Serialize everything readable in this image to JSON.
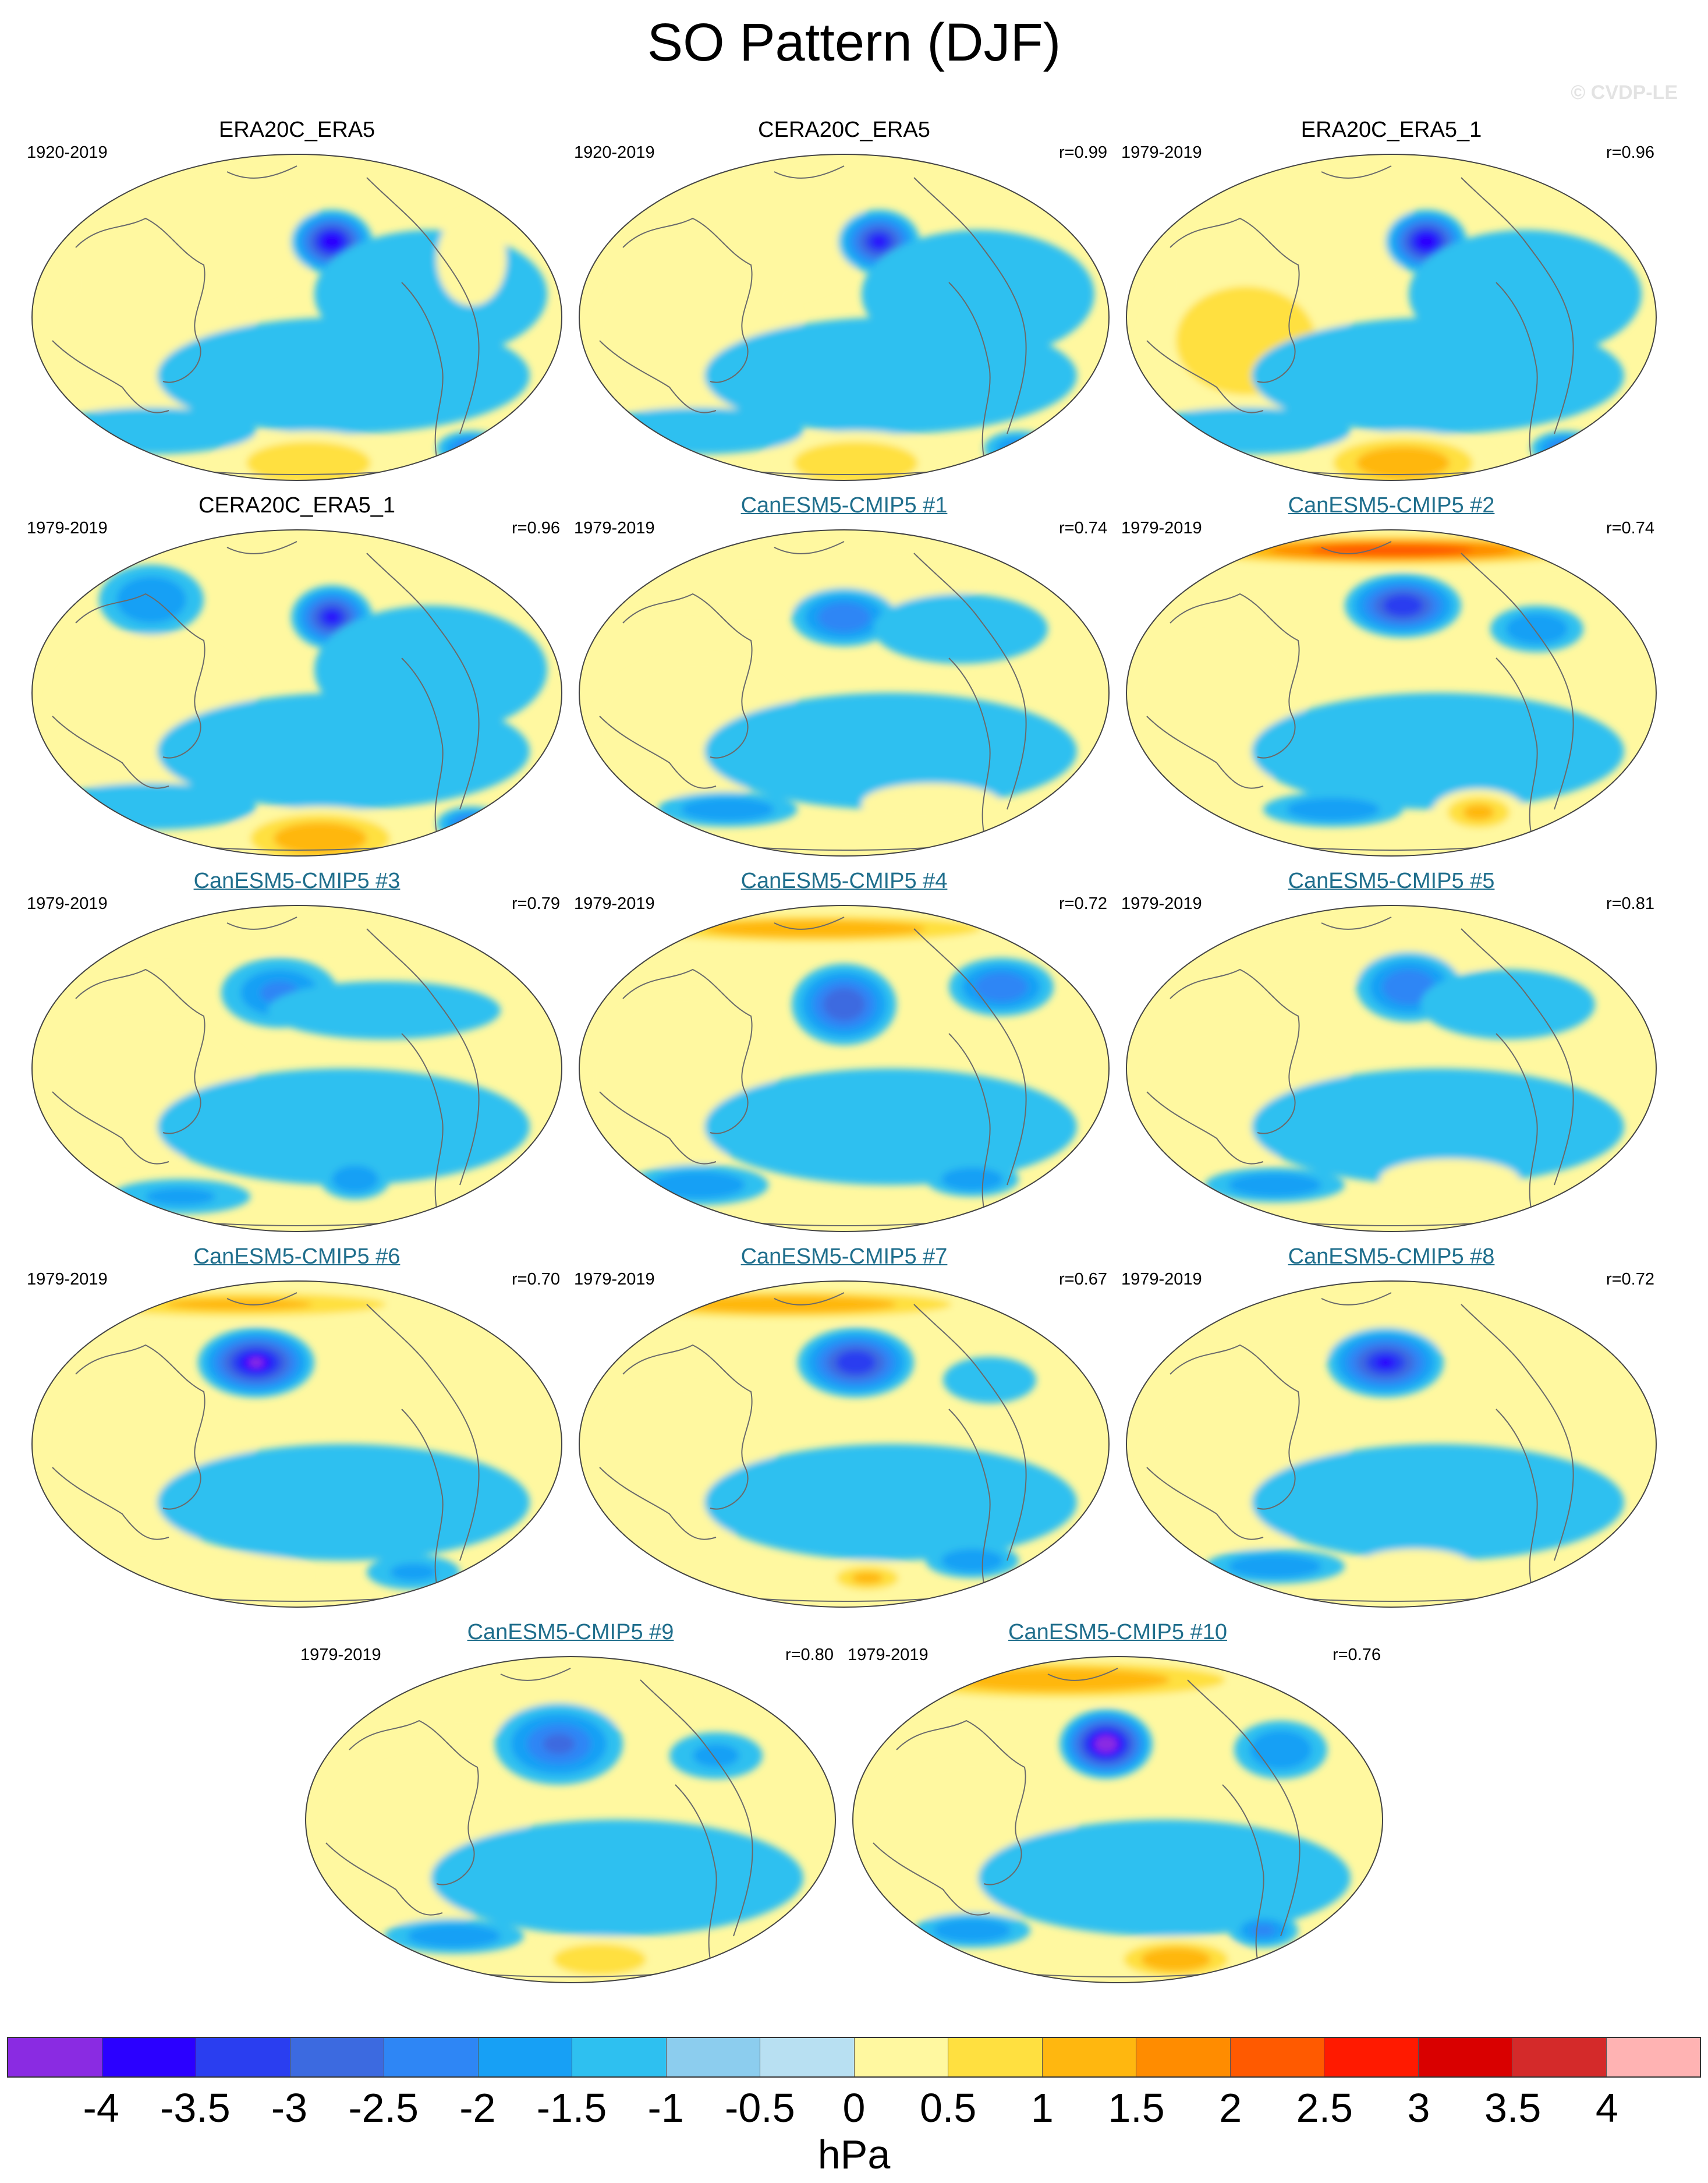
{
  "figure": {
    "title": "SO Pattern (DJF)",
    "watermark": "© CVDP-LE"
  },
  "panels": [
    {
      "title": "ERA20C_ERA5",
      "period": "1920-2019",
      "r": "",
      "title_color": "#000000"
    },
    {
      "title": "CERA20C_ERA5",
      "period": "1920-2019",
      "r": "r=0.99",
      "title_color": "#000000"
    },
    {
      "title": "ERA20C_ERA5_1",
      "period": "1979-2019",
      "r": "r=0.96",
      "title_color": "#000000"
    },
    {
      "title": "CERA20C_ERA5_1",
      "period": "1979-2019",
      "r": "r=0.96",
      "title_color": "#000000"
    },
    {
      "title": "CanESM5-CMIP5 #1",
      "period": "1979-2019",
      "r": "r=0.74",
      "title_color": "#1f6e8c"
    },
    {
      "title": "CanESM5-CMIP5 #2",
      "period": "1979-2019",
      "r": "r=0.74",
      "title_color": "#1f6e8c"
    },
    {
      "title": "CanESM5-CMIP5 #3",
      "period": "1979-2019",
      "r": "r=0.79",
      "title_color": "#1f6e8c"
    },
    {
      "title": "CanESM5-CMIP5 #4",
      "period": "1979-2019",
      "r": "r=0.72",
      "title_color": "#1f6e8c"
    },
    {
      "title": "CanESM5-CMIP5 #5",
      "period": "1979-2019",
      "r": "r=0.81",
      "title_color": "#1f6e8c"
    },
    {
      "title": "CanESM5-CMIP5 #6",
      "period": "1979-2019",
      "r": "r=0.70",
      "title_color": "#1f6e8c"
    },
    {
      "title": "CanESM5-CMIP5 #7",
      "period": "1979-2019",
      "r": "r=0.67",
      "title_color": "#1f6e8c"
    },
    {
      "title": "CanESM5-CMIP5 #8",
      "period": "1979-2019",
      "r": "r=0.72",
      "title_color": "#1f6e8c"
    },
    {
      "title": "CanESM5-CMIP5 #9",
      "period": "1979-2019",
      "r": "r=0.80",
      "title_color": "#1f6e8c"
    },
    {
      "title": "CanESM5-CMIP5 #10",
      "period": "1979-2019",
      "r": "r=0.76",
      "title_color": "#1f6e8c"
    }
  ],
  "colorbar": {
    "units": "hPa",
    "labels": [
      "-4",
      "-3.5",
      "-3",
      "-2.5",
      "-2",
      "-1.5",
      "-1",
      "-0.5",
      "0",
      "0.5",
      "1",
      "1.5",
      "2",
      "2.5",
      "3",
      "3.5",
      "4"
    ],
    "colors": [
      "#8a2be2",
      "#2b00ff",
      "#2a3ef0",
      "#3c6ae0",
      "#2e86f5",
      "#17a0f5",
      "#2ec0f0",
      "#8ccdee",
      "#b8e0f2",
      "#fff8a0",
      "#ffe040",
      "#ffb70f",
      "#ff8c00",
      "#ff5a00",
      "#ff1a00",
      "#d90000",
      "#d42a2a",
      "#ffb3b3"
    ]
  }
}
